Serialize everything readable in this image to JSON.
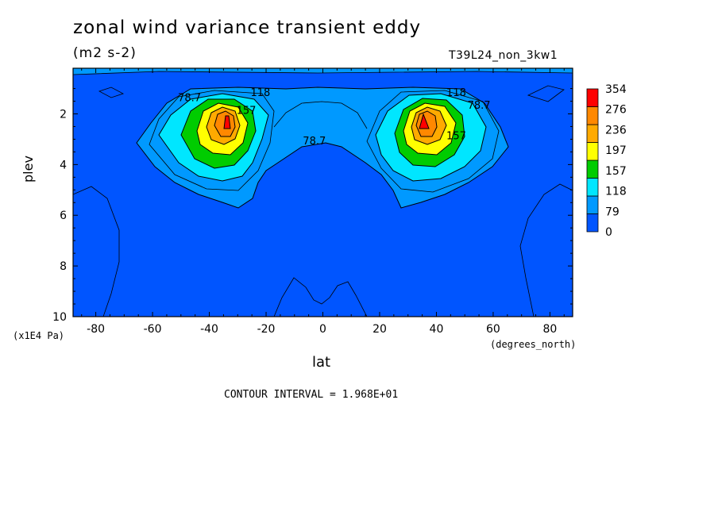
{
  "header": {
    "title": "zonal wind variance transient eddy",
    "units": "(m2 s-2)",
    "run_id": "T39L24_non_3kw1"
  },
  "axes": {
    "ylabel": "plev",
    "xlabel": "lat",
    "y_unit": "(x1E4 Pa)",
    "x_unit": "(degrees_north)"
  },
  "footer": {
    "contour_interval": "CONTOUR INTERVAL = 1.968E+01"
  },
  "colors": {
    "background": "#ffffff",
    "levels": [
      "#0055ff",
      "#0099ff",
      "#00e6ff",
      "#00cc00",
      "#ffff00",
      "#ffaa00",
      "#ff8800",
      "#ff0000"
    ]
  },
  "chart_data": {
    "type": "contour",
    "x_ticks": [
      "-80",
      "-60",
      "-40",
      "-20",
      "0",
      "20",
      "40",
      "60",
      "80"
    ],
    "x_tick_values": [
      -80,
      -60,
      -40,
      -20,
      0,
      20,
      40,
      60,
      80
    ],
    "y_ticks": [
      "2",
      "4",
      "6",
      "8",
      "10"
    ],
    "y_tick_values": [
      2,
      4,
      6,
      8,
      10
    ],
    "xlim": [
      -88,
      88
    ],
    "ylim": [
      10,
      0.2
    ],
    "colorbar_labels": [
      "354",
      "276",
      "236",
      "197",
      "157",
      "118",
      "79",
      "0"
    ],
    "colorbar_levels": [
      0,
      79,
      118,
      157,
      197,
      236,
      276,
      354
    ],
    "contour_labels": [
      {
        "text": "78.7",
        "lat": -47,
        "plev": 1.5
      },
      {
        "text": "118",
        "lat": -22,
        "plev": 1.3
      },
      {
        "text": "157",
        "lat": -27,
        "plev": 2.0
      },
      {
        "text": "78.7",
        "lat": -3,
        "plev": 3.2
      },
      {
        "text": "118",
        "lat": 47,
        "plev": 1.3
      },
      {
        "text": "78.7",
        "lat": 55,
        "plev": 1.8
      },
      {
        "text": "157",
        "lat": 47,
        "plev": 3.0
      }
    ],
    "jets": [
      {
        "lat": -34,
        "plev": 2.3,
        "max": 354
      },
      {
        "lat": 35,
        "plev": 2.3,
        "max": 354
      }
    ]
  }
}
